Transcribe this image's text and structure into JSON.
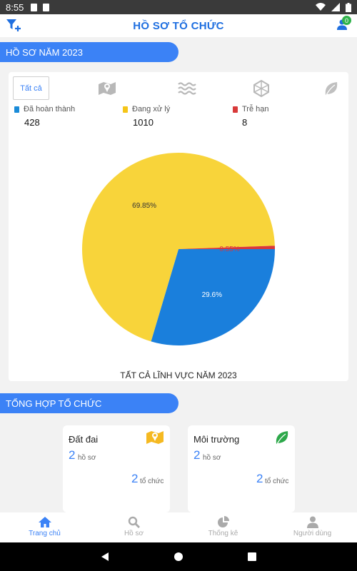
{
  "status_bar": {
    "time": "8:55"
  },
  "header": {
    "title": "HỒ SƠ TỔ CHỨC",
    "user_badge": "0"
  },
  "section1": {
    "title": "HỒ SƠ NĂM 2023"
  },
  "filter_tabs": {
    "all": "Tất cả"
  },
  "stats": [
    {
      "label": "Đã hoàn thành",
      "value": "428",
      "color": "#1a8bd8"
    },
    {
      "label": "Đang xử lý",
      "value": "1010",
      "color": "#f5c518"
    },
    {
      "label": "Trễ hạn",
      "value": "8",
      "color": "#d83a3a"
    }
  ],
  "chart_data": {
    "type": "pie",
    "title": "TẤT CẢ LĨNH VỰC NĂM 2023",
    "slices": [
      {
        "label": "29.6%",
        "value": 29.6,
        "color": "#1a7fdc"
      },
      {
        "label": "69.85%",
        "value": 69.85,
        "color": "#f8d43a"
      },
      {
        "label": "0.55%",
        "value": 0.55,
        "color": "#d8373c"
      }
    ]
  },
  "section2": {
    "title": "TỔNG HỢP TỔ CHỨC"
  },
  "org_cards": [
    {
      "name": "Đất đai",
      "count1": "2",
      "unit1": "hồ sơ",
      "count2": "2",
      "unit2": "tổ chức"
    },
    {
      "name": "Môi trường",
      "count1": "2",
      "unit1": "hồ sơ",
      "count2": "2",
      "unit2": "tổ chức"
    }
  ],
  "bottom_nav": [
    {
      "label": "Trang chủ"
    },
    {
      "label": "Hồ sơ"
    },
    {
      "label": "Thống kê"
    },
    {
      "label": "Người dùng"
    }
  ]
}
